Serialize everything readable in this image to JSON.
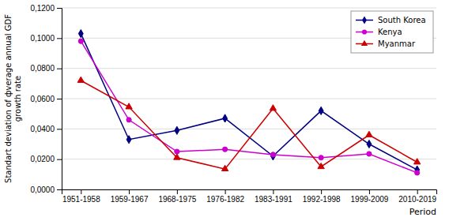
{
  "chart_data": {
    "type": "line",
    "categories": [
      "1951-1958",
      "1959-1967",
      "1968-1975",
      "1976-1982",
      "1983-1991",
      "1992-1998",
      "1999-2009",
      "2010-2019"
    ],
    "series": [
      {
        "name": "South Korea",
        "color": "#000080",
        "marker": "diamond",
        "values": [
          0.103,
          0.033,
          0.039,
          0.047,
          0.022,
          0.052,
          0.03,
          0.013
        ]
      },
      {
        "name": "Kenya",
        "color": "#CC00CC",
        "marker": "circle",
        "values": [
          0.098,
          0.046,
          0.025,
          0.0265,
          0.023,
          0.021,
          0.0235,
          0.011
        ]
      },
      {
        "name": "Myanmar",
        "color": "#CC0000",
        "marker": "triangle",
        "values": [
          0.072,
          0.0545,
          0.021,
          0.0135,
          0.0535,
          0.015,
          0.036,
          0.018
        ]
      }
    ],
    "ylabel": [
      "Standart deviation of фverage annual GDF",
      "growth rate"
    ],
    "xlabel": "Period",
    "ylim": [
      0.0,
      0.12
    ],
    "yticks": [
      {
        "value": 0.0,
        "label": "0,0000"
      },
      {
        "value": 0.02,
        "label": "0,0200"
      },
      {
        "value": 0.04,
        "label": "0,0400"
      },
      {
        "value": 0.06,
        "label": "0,0600"
      },
      {
        "value": 0.08,
        "label": "0,0800"
      },
      {
        "value": 0.1,
        "label": "0,1000"
      },
      {
        "value": 0.12,
        "label": "0,1200"
      }
    ],
    "grid": true,
    "legend": "upper right"
  }
}
